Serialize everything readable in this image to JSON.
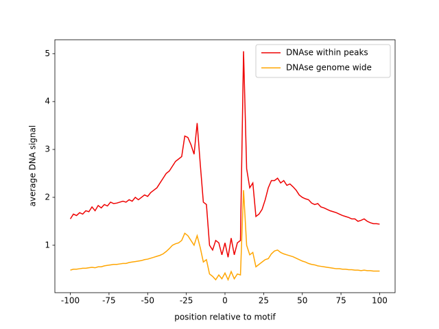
{
  "chart_data": {
    "type": "line",
    "xlabel": "position relative to motif",
    "ylabel": "average DNA signal",
    "x": [
      -100,
      -98,
      -96,
      -94,
      -92,
      -90,
      -88,
      -86,
      -84,
      -82,
      -80,
      -78,
      -76,
      -74,
      -72,
      -70,
      -68,
      -66,
      -64,
      -62,
      -60,
      -58,
      -56,
      -54,
      -52,
      -50,
      -48,
      -46,
      -44,
      -42,
      -40,
      -38,
      -36,
      -34,
      -32,
      -30,
      -28,
      -26,
      -24,
      -22,
      -20,
      -18,
      -16,
      -14,
      -12,
      -10,
      -8,
      -6,
      -4,
      -2,
      0,
      2,
      4,
      6,
      8,
      10,
      12,
      14,
      16,
      18,
      20,
      22,
      24,
      26,
      28,
      30,
      32,
      34,
      36,
      38,
      40,
      42,
      44,
      46,
      48,
      50,
      52,
      54,
      56,
      58,
      60,
      62,
      64,
      66,
      68,
      70,
      72,
      74,
      76,
      78,
      80,
      82,
      84,
      86,
      88,
      90,
      92,
      94,
      96,
      98,
      100
    ],
    "series": [
      {
        "name": "DNAse within peaks",
        "color": "#ee0000",
        "values": [
          1.55,
          1.65,
          1.62,
          1.68,
          1.65,
          1.72,
          1.7,
          1.8,
          1.72,
          1.83,
          1.78,
          1.85,
          1.82,
          1.9,
          1.87,
          1.88,
          1.9,
          1.92,
          1.9,
          1.95,
          1.92,
          2.0,
          1.95,
          2.0,
          2.05,
          2.02,
          2.1,
          2.15,
          2.2,
          2.3,
          2.4,
          2.5,
          2.55,
          2.65,
          2.75,
          2.8,
          2.85,
          3.28,
          3.25,
          3.1,
          2.9,
          3.55,
          2.7,
          1.9,
          1.85,
          1.0,
          0.9,
          1.1,
          1.05,
          0.8,
          1.05,
          0.75,
          1.15,
          0.8,
          1.05,
          1.1,
          5.05,
          2.6,
          2.2,
          2.3,
          1.6,
          1.65,
          1.75,
          1.95,
          2.2,
          2.35,
          2.35,
          2.4,
          2.3,
          2.35,
          2.25,
          2.28,
          2.22,
          2.15,
          2.05,
          2.0,
          1.97,
          1.95,
          1.88,
          1.85,
          1.87,
          1.8,
          1.78,
          1.75,
          1.72,
          1.7,
          1.68,
          1.65,
          1.62,
          1.6,
          1.58,
          1.55,
          1.55,
          1.5,
          1.52,
          1.55,
          1.5,
          1.47,
          1.45,
          1.45,
          1.44
        ]
      },
      {
        "name": "DNAse genome wide",
        "color": "#ffa500",
        "values": [
          0.48,
          0.5,
          0.5,
          0.51,
          0.52,
          0.52,
          0.53,
          0.54,
          0.53,
          0.55,
          0.55,
          0.57,
          0.58,
          0.59,
          0.6,
          0.6,
          0.61,
          0.62,
          0.62,
          0.64,
          0.65,
          0.66,
          0.67,
          0.68,
          0.7,
          0.71,
          0.73,
          0.75,
          0.77,
          0.79,
          0.82,
          0.87,
          0.93,
          1.0,
          1.03,
          1.05,
          1.1,
          1.25,
          1.2,
          1.1,
          1.0,
          1.2,
          0.95,
          0.65,
          0.7,
          0.4,
          0.35,
          0.28,
          0.38,
          0.3,
          0.42,
          0.28,
          0.45,
          0.3,
          0.4,
          0.38,
          2.15,
          1.0,
          0.8,
          0.85,
          0.55,
          0.6,
          0.65,
          0.7,
          0.72,
          0.82,
          0.88,
          0.9,
          0.85,
          0.82,
          0.8,
          0.78,
          0.76,
          0.73,
          0.7,
          0.67,
          0.65,
          0.62,
          0.6,
          0.59,
          0.57,
          0.56,
          0.55,
          0.54,
          0.53,
          0.52,
          0.51,
          0.51,
          0.5,
          0.5,
          0.49,
          0.49,
          0.48,
          0.48,
          0.47,
          0.48,
          0.47,
          0.47,
          0.46,
          0.46,
          0.46
        ]
      }
    ],
    "xlim": [
      -110,
      110
    ],
    "ylim": [
      0.01,
      5.29
    ],
    "xticks": [
      -100,
      -75,
      -50,
      -25,
      0,
      25,
      50,
      75,
      100
    ],
    "yticks": [
      1,
      2,
      3,
      4,
      5
    ],
    "legend": "upper right"
  }
}
